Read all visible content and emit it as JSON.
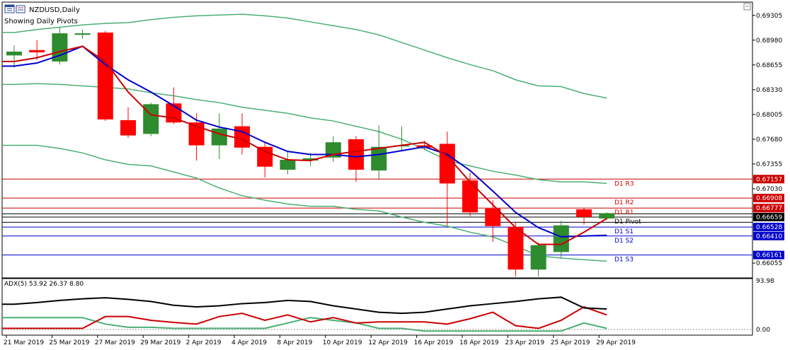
{
  "window": {
    "symbol_label": "NZDUSD,Daily",
    "subtitle": "Showing Daily Pivots",
    "icon_name": "chart-window-icon"
  },
  "chart_data": [
    {
      "type": "candlestick",
      "symbol": "NZDUSD",
      "timeframe": "Daily",
      "ylim": [
        0.6587,
        0.6947
      ],
      "y_ticks": [
        "0.69305",
        "0.68980",
        "0.68655",
        "0.68330",
        "0.68005",
        "0.67680",
        "0.67355",
        "0.67030",
        "0.66055"
      ],
      "x_ticks": [
        "21 Mar 2019",
        "25 Mar 2019",
        "27 Mar 2019",
        "29 Mar 2019",
        "2 Apr 2019",
        "4 Apr 2019",
        "8 Apr 2019",
        "10 Apr 2019",
        "12 Apr 2019",
        "16 Apr 2019",
        "18 Apr 2019",
        "23 Apr 2019",
        "25 Apr 2019",
        "29 Apr 2019"
      ],
      "x_tick_candle_index": [
        0,
        2,
        4,
        6,
        8,
        10,
        12,
        14,
        16,
        18,
        20,
        22,
        24,
        26
      ],
      "candles": [
        {
          "o": 0.6878,
          "h": 0.6891,
          "l": 0.6862,
          "c": 0.6883
        },
        {
          "o": 0.6885,
          "h": 0.6898,
          "l": 0.6872,
          "c": 0.6882
        },
        {
          "o": 0.687,
          "h": 0.6915,
          "l": 0.6866,
          "c": 0.6907
        },
        {
          "o": 0.6905,
          "h": 0.6912,
          "l": 0.69,
          "c": 0.6907
        },
        {
          "o": 0.6908,
          "h": 0.691,
          "l": 0.6792,
          "c": 0.6794
        },
        {
          "o": 0.6793,
          "h": 0.681,
          "l": 0.677,
          "c": 0.6773
        },
        {
          "o": 0.6775,
          "h": 0.6816,
          "l": 0.6772,
          "c": 0.6814
        },
        {
          "o": 0.6815,
          "h": 0.6836,
          "l": 0.6788,
          "c": 0.679
        },
        {
          "o": 0.679,
          "h": 0.6802,
          "l": 0.674,
          "c": 0.676
        },
        {
          "o": 0.676,
          "h": 0.6802,
          "l": 0.6742,
          "c": 0.6782
        },
        {
          "o": 0.6785,
          "h": 0.6802,
          "l": 0.6748,
          "c": 0.6757
        },
        {
          "o": 0.6758,
          "h": 0.6764,
          "l": 0.6718,
          "c": 0.6732
        },
        {
          "o": 0.6728,
          "h": 0.6752,
          "l": 0.6722,
          "c": 0.6741
        },
        {
          "o": 0.674,
          "h": 0.675,
          "l": 0.6733,
          "c": 0.6743
        },
        {
          "o": 0.6744,
          "h": 0.6772,
          "l": 0.6738,
          "c": 0.6764
        },
        {
          "o": 0.6768,
          "h": 0.6772,
          "l": 0.6712,
          "c": 0.6728
        },
        {
          "o": 0.6727,
          "h": 0.6786,
          "l": 0.6716,
          "c": 0.6758
        },
        {
          "o": 0.676,
          "h": 0.6785,
          "l": 0.6752,
          "c": 0.676
        },
        {
          "o": 0.676,
          "h": 0.6766,
          "l": 0.6754,
          "c": 0.6757
        },
        {
          "o": 0.6762,
          "h": 0.6778,
          "l": 0.6655,
          "c": 0.671
        },
        {
          "o": 0.6714,
          "h": 0.6724,
          "l": 0.6667,
          "c": 0.6672
        },
        {
          "o": 0.6677,
          "h": 0.6688,
          "l": 0.6633,
          "c": 0.6654
        },
        {
          "o": 0.6653,
          "h": 0.666,
          "l": 0.6588,
          "c": 0.6597
        },
        {
          "o": 0.6597,
          "h": 0.6633,
          "l": 0.6588,
          "c": 0.6629
        },
        {
          "o": 0.662,
          "h": 0.6661,
          "l": 0.6612,
          "c": 0.6655
        },
        {
          "o": 0.6676,
          "h": 0.6678,
          "l": 0.6656,
          "c": 0.6666
        },
        {
          "o": 0.6664,
          "h": 0.6672,
          "l": 0.6662,
          "c": 0.6671
        }
      ],
      "colors": {
        "bull": "#2e8b2e",
        "bear": "#ff0000",
        "wick": "#000000",
        "ma_fast": "#cc0000",
        "ma_slow": "#0000cc",
        "envelope": "#4caf73",
        "grid": "#000000",
        "background": "#ffffff"
      },
      "ma_fast": [
        0.687,
        0.6875,
        0.6883,
        0.689,
        0.687,
        0.683,
        0.68,
        0.6796,
        0.6785,
        0.6775,
        0.6768,
        0.6752,
        0.6741,
        0.674,
        0.6748,
        0.6752,
        0.6756,
        0.676,
        0.6764,
        0.6746,
        0.6712,
        0.6682,
        0.6652,
        0.663,
        0.663,
        0.6646,
        0.6664
      ],
      "ma_slow": [
        0.6864,
        0.6868,
        0.6878,
        0.689,
        0.6866,
        0.6846,
        0.683,
        0.6812,
        0.6793,
        0.6784,
        0.6778,
        0.6764,
        0.6752,
        0.6748,
        0.6748,
        0.6745,
        0.6748,
        0.6753,
        0.6758,
        0.6748,
        0.6727,
        0.67,
        0.6672,
        0.6652,
        0.664,
        0.6641,
        0.6642
      ],
      "env_upper": [
        0.6908,
        0.6912,
        0.6915,
        0.6918,
        0.692,
        0.6921,
        0.6925,
        0.6928,
        0.693,
        0.6931,
        0.6932,
        0.693,
        0.6927,
        0.6922,
        0.6917,
        0.6912,
        0.6905,
        0.6895,
        0.6885,
        0.6875,
        0.6866,
        0.6858,
        0.6846,
        0.6838,
        0.6837,
        0.6828,
        0.6822
      ],
      "env_middle": [
        0.684,
        0.6841,
        0.684,
        0.6838,
        0.6836,
        0.6834,
        0.6829,
        0.6825,
        0.682,
        0.6816,
        0.681,
        0.6806,
        0.6802,
        0.6796,
        0.6792,
        0.6785,
        0.6778,
        0.6768,
        0.6755,
        0.674,
        0.6733,
        0.6726,
        0.6721,
        0.6715,
        0.6712,
        0.6712,
        0.671
      ],
      "env_lower": [
        0.676,
        0.676,
        0.6756,
        0.675,
        0.6741,
        0.6735,
        0.6733,
        0.6725,
        0.6717,
        0.6704,
        0.6694,
        0.6688,
        0.6683,
        0.668,
        0.668,
        0.6676,
        0.6674,
        0.6666,
        0.6659,
        0.6654,
        0.6646,
        0.664,
        0.6628,
        0.6615,
        0.6612,
        0.661,
        0.6608
      ],
      "pivots": [
        {
          "label": "D1 R3",
          "value": 0.67157,
          "value_text": "0.67157",
          "color": "#cc0000"
        },
        {
          "label": "D1 R2",
          "value": 0.66908,
          "value_text": "0.66908",
          "color": "#cc0000"
        },
        {
          "label": "D1 R1",
          "value": 0.66777,
          "value_text": "0.66777",
          "color": "#cc0000"
        },
        {
          "label": "D1 Pivot",
          "value": 0.66659,
          "value_text": "0.66659",
          "color": "#000000"
        },
        {
          "label": "D1 S1",
          "value": 0.66528,
          "value_text": "0.66528",
          "color": "#0000cc"
        },
        {
          "label": "D1 S2",
          "value": 0.6641,
          "value_text": "0.66410",
          "color": "#0000cc"
        },
        {
          "label": "D1 S3",
          "value": 0.66161,
          "value_text": "0.66161",
          "color": "#0000cc"
        }
      ],
      "extra_pivot_lines": [
        0.66702,
        0.6659
      ]
    },
    {
      "type": "line",
      "indicator": "ADX(5)",
      "header_label": "ADX(5) 53.92 26.37 8.80",
      "ylim": [
        0,
        100
      ],
      "y_ticks": [
        "93.98",
        "0.00"
      ],
      "adx": [
        55,
        58,
        62,
        65,
        67,
        64,
        60,
        53,
        50,
        52,
        56,
        58,
        62,
        60,
        52,
        46,
        40,
        38,
        40,
        46,
        52,
        56,
        60,
        65,
        68,
        48,
        46
      ],
      "plus_di": [
        10,
        10,
        10,
        10,
        32,
        32,
        25,
        21,
        18,
        32,
        38,
        25,
        35,
        22,
        30,
        20,
        22,
        22,
        22,
        18,
        28,
        40,
        15,
        10,
        25,
        50,
        35
      ],
      "minus_di": [
        30,
        30,
        30,
        30,
        18,
        12,
        12,
        10,
        10,
        10,
        10,
        10,
        20,
        30,
        25,
        20,
        10,
        10,
        5,
        5,
        5,
        5,
        5,
        5,
        5,
        20,
        10
      ],
      "colors": {
        "adx": "#000000",
        "plus_di": "#4caf73",
        "minus_di": "#cc0000"
      }
    }
  ]
}
